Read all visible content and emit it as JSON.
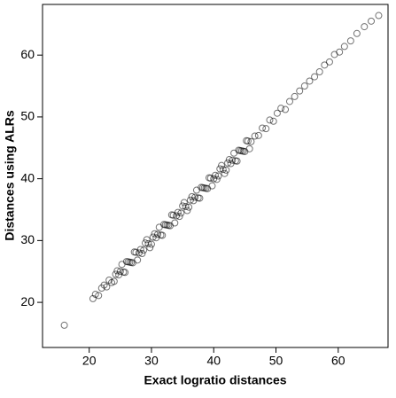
{
  "chart_data": {
    "type": "scatter",
    "x_label": "Exact logratio distances",
    "y_label": "Distances using ALRs",
    "xlim": [
      12.5,
      68
    ],
    "ylim": [
      12.7,
      68.2
    ],
    "xticks": [
      20,
      30,
      40,
      50,
      60
    ],
    "yticks": [
      20,
      30,
      40,
      50,
      60
    ],
    "color": "#000000",
    "x": [
      16.0,
      20.6,
      21.0,
      21.5,
      22.0,
      22.4,
      22.8,
      23.2,
      23.6,
      24.0,
      24.5,
      25.0,
      25.5,
      26.0,
      26.5,
      27.0,
      27.5,
      28.0,
      28.5,
      29.0,
      29.5,
      30.0,
      30.5,
      31.0,
      31.5,
      32.0,
      32.5,
      33.0,
      33.5,
      34.0,
      34.5,
      35.0,
      35.5,
      36.0,
      36.5,
      37.0,
      37.5,
      38.0,
      38.5,
      39.0,
      39.5,
      40.0,
      40.5,
      41.0,
      41.5,
      42.0,
      42.5,
      43.0,
      43.5,
      44.0,
      44.5,
      45.0,
      45.5,
      46.0,
      24.25,
      24.75,
      25.25,
      25.75,
      26.25,
      26.75,
      27.25,
      27.75,
      28.25,
      28.75,
      29.25,
      29.75,
      30.25,
      30.75,
      31.25,
      31.75,
      32.25,
      32.75,
      33.25,
      33.75,
      34.25,
      34.75,
      35.25,
      35.75,
      36.25,
      36.75,
      37.25,
      37.75,
      38.25,
      38.75,
      39.25,
      39.75,
      40.25,
      40.75,
      41.25,
      41.75,
      42.25,
      42.75,
      43.25,
      43.75,
      44.25,
      44.75,
      45.25,
      45.75,
      46.6,
      47.2,
      47.8,
      48.4,
      49.0,
      49.6,
      50.2,
      50.8,
      51.5,
      52.2,
      53.0,
      53.8,
      54.6,
      55.4,
      56.2,
      57.0,
      57.8,
      58.6,
      59.4,
      60.2,
      61.0,
      62.0,
      63.0,
      64.2,
      65.3,
      66.5
    ],
    "y": [
      16.3,
      20.6,
      21.3,
      21.1,
      22.3,
      22.8,
      22.5,
      23.6,
      23.2,
      23.4,
      25.1,
      25.0,
      24.9,
      26.6,
      26.5,
      26.4,
      28.1,
      28.0,
      27.9,
      29.6,
      29.5,
      29.4,
      31.1,
      31.0,
      30.9,
      32.6,
      32.5,
      32.4,
      34.1,
      34.0,
      33.9,
      35.6,
      35.5,
      35.4,
      37.1,
      37.0,
      36.9,
      38.6,
      38.5,
      38.4,
      40.1,
      40.0,
      39.9,
      41.6,
      41.5,
      41.4,
      43.1,
      43.0,
      42.9,
      44.6,
      44.5,
      44.4,
      46.1,
      46.0,
      24.55,
      24.45,
      26.15,
      24.85,
      26.55,
      26.45,
      28.15,
      26.85,
      28.55,
      28.45,
      30.15,
      28.85,
      30.55,
      30.45,
      32.15,
      30.85,
      32.55,
      32.45,
      34.15,
      32.85,
      34.55,
      34.45,
      36.15,
      34.85,
      36.55,
      36.45,
      38.15,
      36.85,
      38.55,
      38.45,
      40.15,
      38.85,
      40.55,
      40.45,
      42.15,
      40.85,
      42.55,
      42.45,
      44.15,
      42.85,
      44.55,
      44.45,
      46.15,
      44.85,
      46.9,
      47.0,
      48.2,
      48.1,
      49.5,
      49.3,
      50.6,
      51.4,
      51.2,
      52.5,
      53.3,
      54.2,
      55.0,
      55.8,
      56.5,
      57.3,
      58.4,
      58.9,
      60.1,
      60.5,
      61.4,
      62.3,
      63.5,
      64.6,
      65.5,
      66.4
    ]
  }
}
